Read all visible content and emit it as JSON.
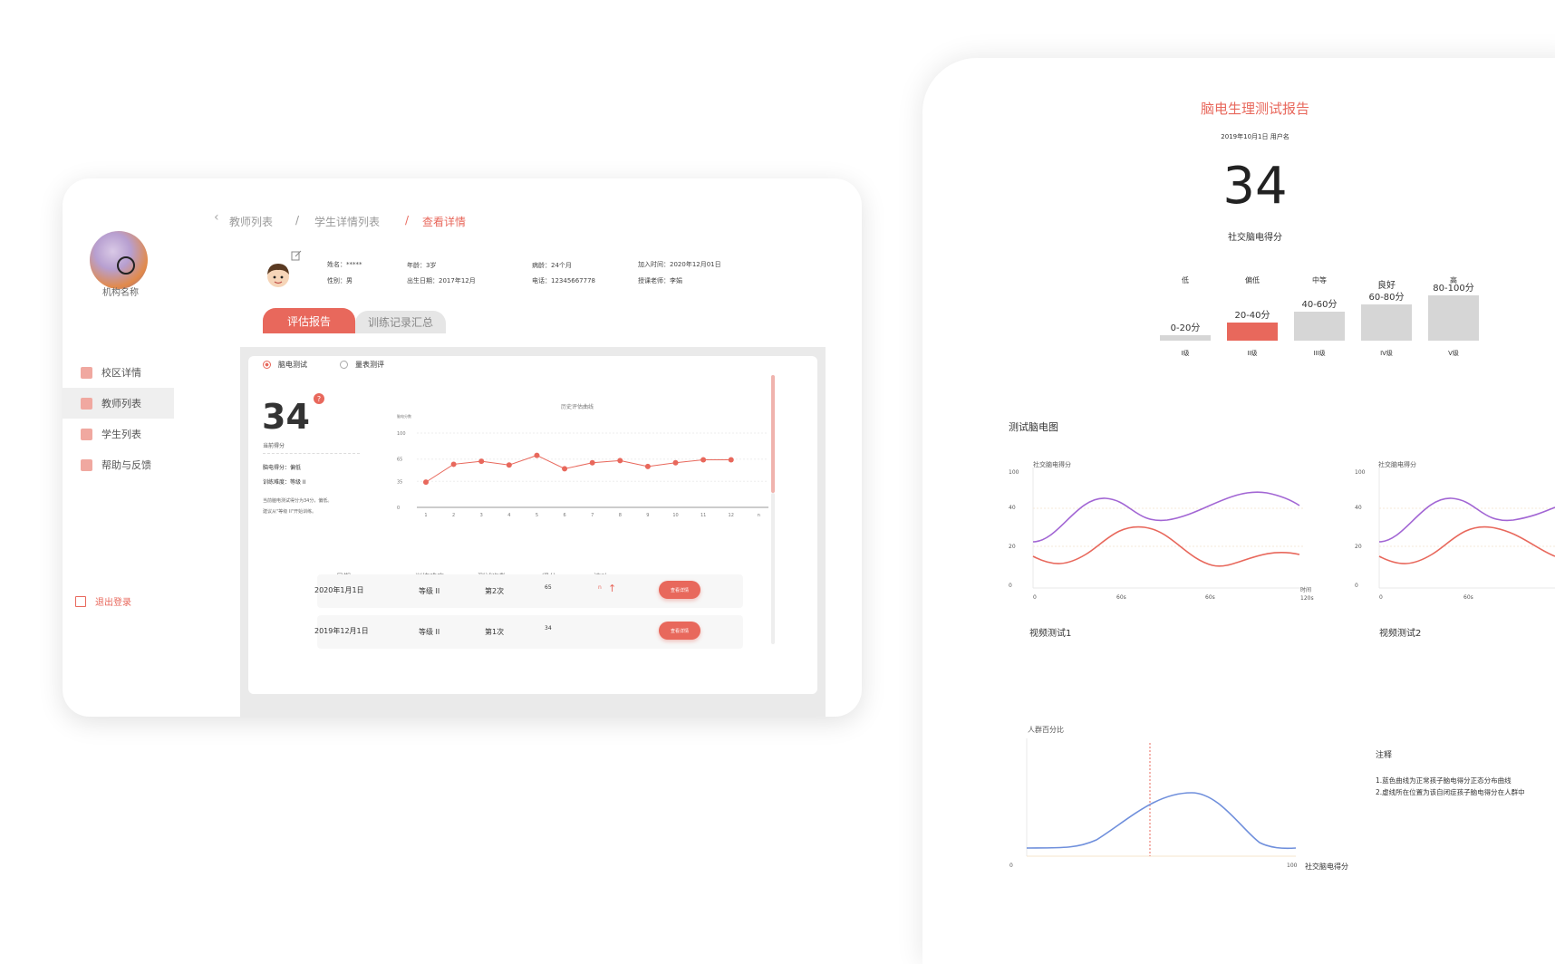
{
  "sidebar": {
    "org_name": "机构名称",
    "items": [
      {
        "label": "校区详情",
        "icon": "document-icon"
      },
      {
        "label": "教师列表",
        "icon": "teacher-icon"
      },
      {
        "label": "学生列表",
        "icon": "student-icon"
      },
      {
        "label": "帮助与反馈",
        "icon": "help-icon"
      }
    ],
    "logout": "退出登录"
  },
  "breadcrumb": {
    "items": [
      "教师列表",
      "学生详情列表",
      "查看详情"
    ],
    "separator": "/"
  },
  "student": {
    "name": "姓名：*****",
    "gender": "性别：男",
    "age": "年龄：3岁",
    "birth": "出生日期：2017年12月",
    "course_age": "病龄：24个月",
    "phone": "电话：12345667778",
    "join": "加入时间：2020年12月01日",
    "teacher": "授课老师：李娟"
  },
  "tabs": [
    "评估报告",
    "训练记录汇总"
  ],
  "test_types": [
    "脑电测试",
    "量表测评"
  ],
  "score": {
    "value": "34",
    "label": "当前得分",
    "help": "?",
    "eeg_score": "脑电得分：偏低",
    "difficulty": "训练难度：等级 II",
    "desc1": "当前脑电测试得分为34分，偏低。",
    "desc2": "建议从\"等级 II\"开始训练。"
  },
  "history_chart": {
    "title": "历史评估曲线",
    "ylabel": "脑电分数",
    "yticks": [
      "100",
      "65",
      "35",
      "0"
    ],
    "xticks": [
      "1",
      "2",
      "3",
      "4",
      "5",
      "6",
      "7",
      "8",
      "9",
      "10",
      "11",
      "12",
      "n"
    ]
  },
  "table": {
    "headers": [
      "日期",
      "训练难度",
      "测试次数",
      "得分",
      "波动"
    ],
    "rows": [
      {
        "date": "2020年1月1日",
        "level": "等级 II",
        "count": "第2次",
        "score": "65",
        "trend": "n",
        "arrow": "↑",
        "action": "查看详情"
      },
      {
        "date": "2019年12月1日",
        "level": "等级 II",
        "count": "第1次",
        "score": "34",
        "action": "查看详情"
      }
    ]
  },
  "report": {
    "title": "脑电生理测试报告",
    "date_user": "2019年10月1日  用户名",
    "score": "34",
    "score_label": "社交脑电得分",
    "levels": [
      {
        "name": "低",
        "range": "0-20分",
        "roman": "I级",
        "value": 0.12,
        "highlight": false
      },
      {
        "name": "偏低",
        "range": "20-40分",
        "roman": "II级",
        "value": 0.4,
        "highlight": true
      },
      {
        "name": "中等",
        "range": "40-60分",
        "roman": "III级",
        "value": 0.64,
        "highlight": false
      },
      {
        "name": "良好",
        "range": "60-80分",
        "roman": "IV级",
        "value": 0.8,
        "highlight": false
      },
      {
        "name": "高",
        "range": "80-100分",
        "roman": "V级",
        "value": 1.0,
        "highlight": false
      }
    ],
    "eeg_section": "测试脑电图",
    "eeg_charts": [
      {
        "ylabel": "社交脑电得分",
        "yticks": [
          "100",
          "40",
          "20",
          "0"
        ],
        "xticks": [
          "0",
          "60s",
          "60s",
          "120s"
        ],
        "xlabel": "时间",
        "caption": "视频测试1"
      },
      {
        "ylabel": "社交脑电得分",
        "yticks": [
          "100",
          "40",
          "20",
          "0"
        ],
        "xticks": [
          "0",
          "60s"
        ],
        "caption": "视频测试2"
      }
    ],
    "distribution": {
      "ylabel": "人群百分比",
      "x_min": "0",
      "x_max": "100",
      "xlabel": "社交脑电得分"
    },
    "notes_title": "注释",
    "notes": [
      "1.蓝色曲线为正常孩子脑电得分正态分布曲线",
      "2.虚线所在位置为该自闭症孩子脑电得分在人群中"
    ]
  },
  "colors": {
    "accent": "#e8685c",
    "purple": "#a266d4",
    "blue": "#6f8fdc",
    "grey_bar": "#d6d6d6"
  },
  "chart_data": [
    {
      "type": "line",
      "title": "历史评估曲线",
      "ylabel": "脑电分数",
      "x": [
        "1",
        "2",
        "3",
        "4",
        "5",
        "6",
        "7",
        "8",
        "9",
        "10",
        "11",
        "12"
      ],
      "series": [
        {
          "values": [
            34,
            58,
            62,
            57,
            70,
            52,
            60,
            63,
            55,
            60,
            64,
            64
          ]
        }
      ],
      "ylim": [
        0,
        100
      ]
    },
    {
      "type": "bar",
      "categories": [
        "低",
        "偏低",
        "中等",
        "良好",
        "高"
      ],
      "values": [
        0.12,
        0.4,
        0.64,
        0.8,
        1.0
      ]
    }
  ]
}
